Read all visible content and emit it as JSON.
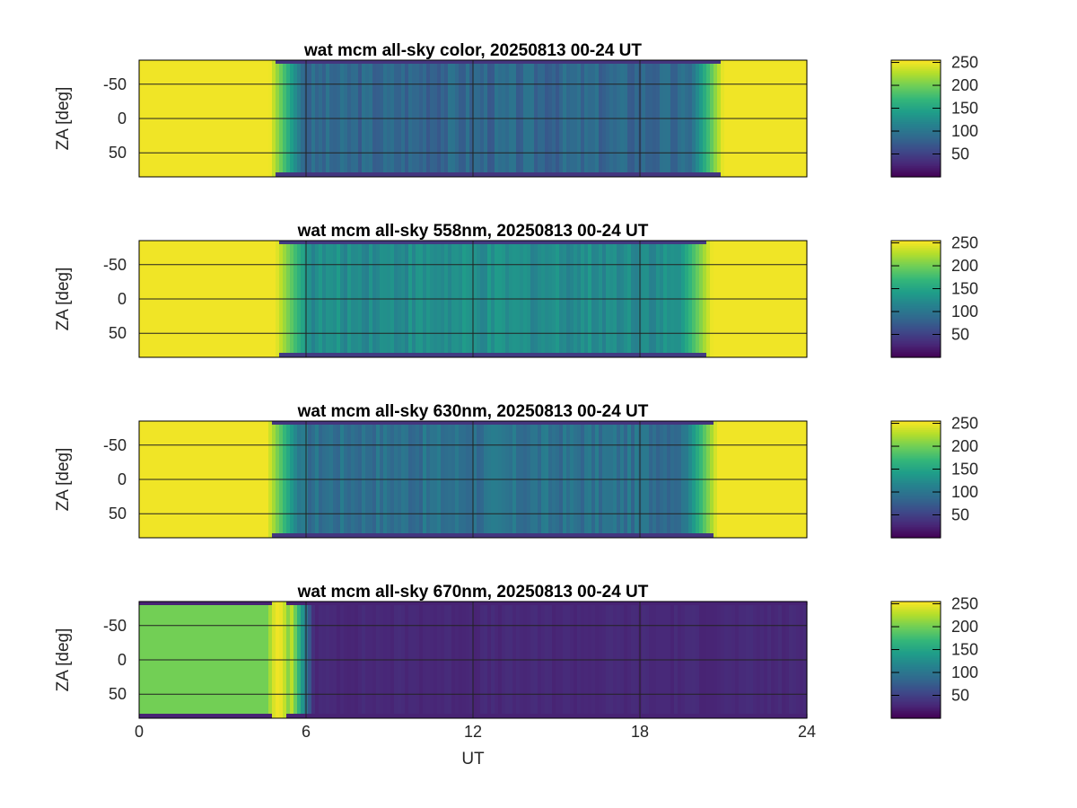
{
  "chart_data": [
    {
      "type": "heatmap",
      "title": "wat mcm all-sky color, 20250813 00-24 UT",
      "xlabel": "",
      "ylabel": "ZA [deg]",
      "xlim": [
        0,
        24
      ],
      "ylim": [
        -85,
        85
      ],
      "yticks": [
        "-50",
        "0",
        "50"
      ],
      "xticks": [],
      "grid": true,
      "colorbar": {
        "ticks": [
          "250",
          "200",
          "150",
          "100",
          "50"
        ],
        "range": [
          0,
          255
        ],
        "colormap": "viridis"
      },
      "profile": {
        "day_value": 250,
        "night_value": 85,
        "dusk_end_ut": 5.0,
        "dawn_start_ut": 20.7,
        "edge_value": 40
      }
    },
    {
      "type": "heatmap",
      "title": "wat mcm all-sky 558nm, 20250813 00-24 UT",
      "xlabel": "",
      "ylabel": "ZA [deg]",
      "xlim": [
        0,
        24
      ],
      "ylim": [
        -85,
        85
      ],
      "yticks": [
        "-50",
        "0",
        "50"
      ],
      "xticks": [],
      "grid": true,
      "colorbar": {
        "ticks": [
          "250",
          "200",
          "150",
          "100",
          "50"
        ],
        "range": [
          0,
          255
        ],
        "colormap": "viridis"
      },
      "profile": {
        "day_value": 250,
        "night_value": 125,
        "dusk_end_ut": 5.2,
        "dawn_start_ut": 20.3,
        "edge_value": 45
      }
    },
    {
      "type": "heatmap",
      "title": "wat mcm all-sky 630nm, 20250813 00-24 UT",
      "xlabel": "",
      "ylabel": "ZA [deg]",
      "xlim": [
        0,
        24
      ],
      "ylim": [
        -85,
        85
      ],
      "yticks": [
        "-50",
        "0",
        "50"
      ],
      "xticks": [],
      "grid": true,
      "colorbar": {
        "ticks": [
          "250",
          "200",
          "150",
          "100",
          "50"
        ],
        "range": [
          0,
          255
        ],
        "colormap": "viridis"
      },
      "profile": {
        "day_value": 250,
        "night_value": 95,
        "dusk_end_ut": 4.9,
        "dawn_start_ut": 20.5,
        "edge_value": 40
      }
    },
    {
      "type": "heatmap",
      "title": "wat mcm all-sky 670nm, 20250813 00-24 UT",
      "xlabel": "UT",
      "ylabel": "ZA [deg]",
      "xlim": [
        0,
        24
      ],
      "ylim": [
        -85,
        85
      ],
      "yticks": [
        "-50",
        "0",
        "50"
      ],
      "xticks": [
        "0",
        "6",
        "12",
        "18",
        "24"
      ],
      "grid": true,
      "colorbar": {
        "ticks": [
          "250",
          "200",
          "150",
          "100",
          "50"
        ],
        "range": [
          0,
          255
        ],
        "colormap": "viridis"
      },
      "profile": {
        "day_value": 200,
        "night_value": 25,
        "dusk_end_ut": 6.3,
        "dawn_start_ut": 24,
        "edge_value": 25
      }
    }
  ]
}
